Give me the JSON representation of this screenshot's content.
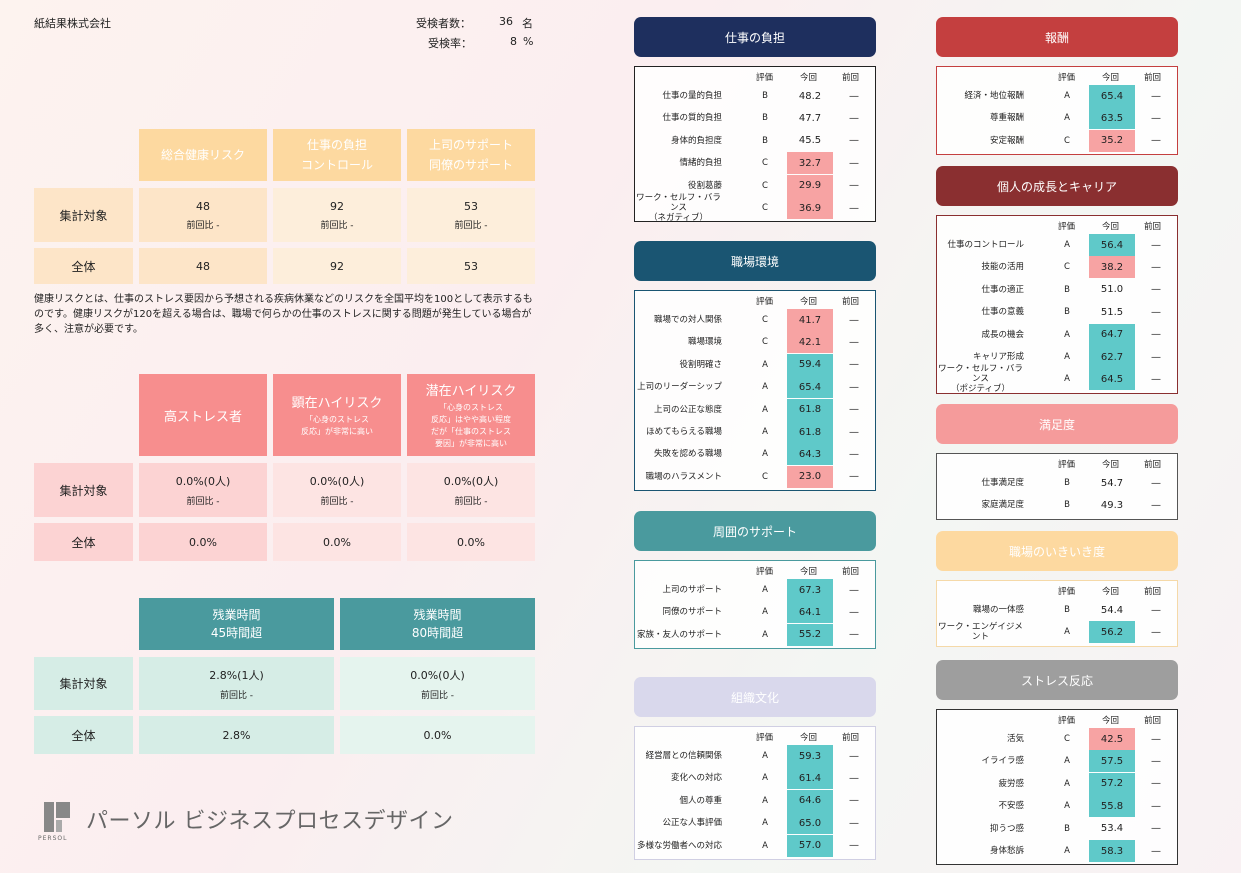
{
  "header": {
    "company": "紙結果株式会社",
    "examinees_label": "受検者数：",
    "examinees_value": "36",
    "examinees_unit": "名",
    "rate_label": "受検率：",
    "rate_value": "8",
    "rate_unit": "%"
  },
  "risk_table": {
    "headers": [
      "総合健康リスク",
      "仕事の負担\nコントロール",
      "上司のサポート\n同僚のサポート"
    ],
    "row1_label": "集計対象",
    "row1": [
      "48",
      "92",
      "53"
    ],
    "row1_sub": [
      "前回比 -",
      "前回比 -",
      "前回比 -"
    ],
    "row2_label": "全体",
    "row2": [
      "48",
      "92",
      "53"
    ]
  },
  "note": "健康リスクとは、仕事のストレス要因から予想される疾病休業などのリスクを全国平均を100として表示するものです。健康リスクが120を超える場合は、職場で何らかの仕事のストレスに関する問題が発生している場合が多く、注意が必要です。",
  "stress_table": {
    "h1": "高ストレス者",
    "h2": "顕在ハイリスク",
    "h2_sub": "「心身のストレス\n反応」が非常に高い",
    "h3": "潜在ハイリスク",
    "h3_sub": "「心身のストレス\n反応」はやや高い程度\nだが「仕事のストレス\n要因」が非常に高い",
    "row1_label": "集計対象",
    "row1": [
      "0.0%(0人)",
      "0.0%(0人)",
      "0.0%(0人)"
    ],
    "row1_sub": [
      "前回比 -",
      "前回比 -",
      "前回比 -"
    ],
    "row2_label": "全体",
    "row2": [
      "0.0%",
      "0.0%",
      "0.0%"
    ]
  },
  "overtime_table": {
    "h1": "残業時間\n45時間超",
    "h2": "残業時間\n80時間超",
    "row1_label": "集計対象",
    "row1": [
      "2.8%(1人)",
      "0.0%(0人)"
    ],
    "row1_sub": [
      "前回比 -",
      "前回比 -"
    ],
    "row2_label": "全体",
    "row2": [
      "2.8%",
      "0.0%"
    ]
  },
  "logo": {
    "text": "パーソル ビジネスプロセスデザイン",
    "sub": "PERSOL"
  },
  "col_headers": {
    "grade": "評価",
    "current": "今回",
    "previous": "前回"
  },
  "panels": {
    "burden": {
      "title": "仕事の負担",
      "color": "#1e2f5e",
      "border": "#222222",
      "rows": [
        {
          "name": "仕事の量的負担",
          "grade": "B",
          "value": "48.2",
          "prev": "—",
          "hl": ""
        },
        {
          "name": "仕事の質的負担",
          "grade": "B",
          "value": "47.7",
          "prev": "—",
          "hl": ""
        },
        {
          "name": "身体的負担度",
          "grade": "B",
          "value": "45.5",
          "prev": "—",
          "hl": ""
        },
        {
          "name": "情緒的負担",
          "grade": "C",
          "value": "32.7",
          "prev": "—",
          "hl": "lo"
        },
        {
          "name": "役割葛藤",
          "grade": "C",
          "value": "29.9",
          "prev": "—",
          "hl": "lo"
        },
        {
          "name": "ワーク・セルフ・バランス\n（ネガティブ）",
          "grade": "C",
          "value": "36.9",
          "prev": "—",
          "hl": "lo"
        }
      ]
    },
    "environment": {
      "title": "職場環境",
      "color": "#1a5572",
      "border": "#1a5572",
      "rows": [
        {
          "name": "職場での対人関係",
          "grade": "C",
          "value": "41.7",
          "prev": "—",
          "hl": "lo"
        },
        {
          "name": "職場環境",
          "grade": "C",
          "value": "42.1",
          "prev": "—",
          "hl": "lo"
        },
        {
          "name": "役割明確さ",
          "grade": "A",
          "value": "59.4",
          "prev": "—",
          "hl": "hi"
        },
        {
          "name": "上司のリーダーシップ",
          "grade": "A",
          "value": "65.4",
          "prev": "—",
          "hl": "hi"
        },
        {
          "name": "上司の公正な態度",
          "grade": "A",
          "value": "61.8",
          "prev": "—",
          "hl": "hi"
        },
        {
          "name": "ほめてもらえる職場",
          "grade": "A",
          "value": "61.8",
          "prev": "—",
          "hl": "hi"
        },
        {
          "name": "失敗を認める職場",
          "grade": "A",
          "value": "64.3",
          "prev": "—",
          "hl": "hi"
        },
        {
          "name": "職場のハラスメント",
          "grade": "C",
          "value": "23.0",
          "prev": "—",
          "hl": "lo"
        }
      ]
    },
    "support": {
      "title": "周囲のサポート",
      "color": "#4a9a9e",
      "border": "#4a9a9e",
      "rows": [
        {
          "name": "上司のサポート",
          "grade": "A",
          "value": "67.3",
          "prev": "—",
          "hl": "hi"
        },
        {
          "name": "同僚のサポート",
          "grade": "A",
          "value": "64.1",
          "prev": "—",
          "hl": "hi"
        },
        {
          "name": "家族・友人のサポート",
          "grade": "A",
          "value": "55.2",
          "prev": "—",
          "hl": "hi"
        }
      ]
    },
    "culture": {
      "title": "組織文化",
      "color": "#d9d8ec",
      "border": "#d0cfe3",
      "rows": [
        {
          "name": "経営層との信頼関係",
          "grade": "A",
          "value": "59.3",
          "prev": "—",
          "hl": "hi"
        },
        {
          "name": "変化への対応",
          "grade": "A",
          "value": "61.4",
          "prev": "—",
          "hl": "hi"
        },
        {
          "name": "個人の尊重",
          "grade": "A",
          "value": "64.6",
          "prev": "—",
          "hl": "hi"
        },
        {
          "name": "公正な人事評価",
          "grade": "A",
          "value": "65.0",
          "prev": "—",
          "hl": "hi"
        },
        {
          "name": "多様な労働者への対応",
          "grade": "A",
          "value": "57.0",
          "prev": "—",
          "hl": "hi"
        }
      ]
    },
    "reward": {
      "title": "報酬",
      "color": "#c43f3f",
      "border": "#c43f3f",
      "rows": [
        {
          "name": "経済・地位報酬",
          "grade": "A",
          "value": "65.4",
          "prev": "—",
          "hl": "hi"
        },
        {
          "name": "尊重報酬",
          "grade": "A",
          "value": "63.5",
          "prev": "—",
          "hl": "hi"
        },
        {
          "name": "安定報酬",
          "grade": "C",
          "value": "35.2",
          "prev": "—",
          "hl": "lo"
        }
      ]
    },
    "growth": {
      "title": "個人の成長とキャリア",
      "color": "#8a2f30",
      "border": "#8a2f30",
      "rows": [
        {
          "name": "仕事のコントロール",
          "grade": "A",
          "value": "56.4",
          "prev": "—",
          "hl": "hi"
        },
        {
          "name": "技能の活用",
          "grade": "C",
          "value": "38.2",
          "prev": "—",
          "hl": "lo"
        },
        {
          "name": "仕事の適正",
          "grade": "B",
          "value": "51.0",
          "prev": "—",
          "hl": ""
        },
        {
          "name": "仕事の意義",
          "grade": "B",
          "value": "51.5",
          "prev": "—",
          "hl": ""
        },
        {
          "name": "成長の機会",
          "grade": "A",
          "value": "64.7",
          "prev": "—",
          "hl": "hi"
        },
        {
          "name": "キャリア形成",
          "grade": "A",
          "value": "62.7",
          "prev": "—",
          "hl": "hi"
        },
        {
          "name": "ワーク・セルフ・バランス\n（ポジティブ）",
          "grade": "A",
          "value": "64.5",
          "prev": "—",
          "hl": "hi"
        }
      ]
    },
    "satisfaction": {
      "title": "満足度",
      "color": "#f59b9b",
      "border": "#555555",
      "rows": [
        {
          "name": "仕事満足度",
          "grade": "B",
          "value": "54.7",
          "prev": "—",
          "hl": ""
        },
        {
          "name": "家庭満足度",
          "grade": "B",
          "value": "49.3",
          "prev": "—",
          "hl": ""
        }
      ]
    },
    "engagement": {
      "title": "職場のいきいき度",
      "color": "#fdd9a0",
      "border": "#f5d9a8",
      "rows": [
        {
          "name": "職場の一体感",
          "grade": "B",
          "value": "54.4",
          "prev": "—",
          "hl": ""
        },
        {
          "name": "ワーク・エンゲイジメント",
          "grade": "A",
          "value": "56.2",
          "prev": "—",
          "hl": "hi"
        }
      ]
    },
    "stress": {
      "title": "ストレス反応",
      "color": "#9e9e9e",
      "border": "#333333",
      "rows": [
        {
          "name": "活気",
          "grade": "C",
          "value": "42.5",
          "prev": "—",
          "hl": "lo"
        },
        {
          "name": "イライラ感",
          "grade": "A",
          "value": "57.5",
          "prev": "—",
          "hl": "hi"
        },
        {
          "name": "疲労感",
          "grade": "A",
          "value": "57.2",
          "prev": "—",
          "hl": "hi"
        },
        {
          "name": "不安感",
          "grade": "A",
          "value": "55.8",
          "prev": "—",
          "hl": "hi"
        },
        {
          "name": "抑うつ感",
          "grade": "B",
          "value": "53.4",
          "prev": "—",
          "hl": ""
        },
        {
          "name": "身体愁訴",
          "grade": "A",
          "value": "58.3",
          "prev": "—",
          "hl": "hi"
        }
      ]
    }
  }
}
